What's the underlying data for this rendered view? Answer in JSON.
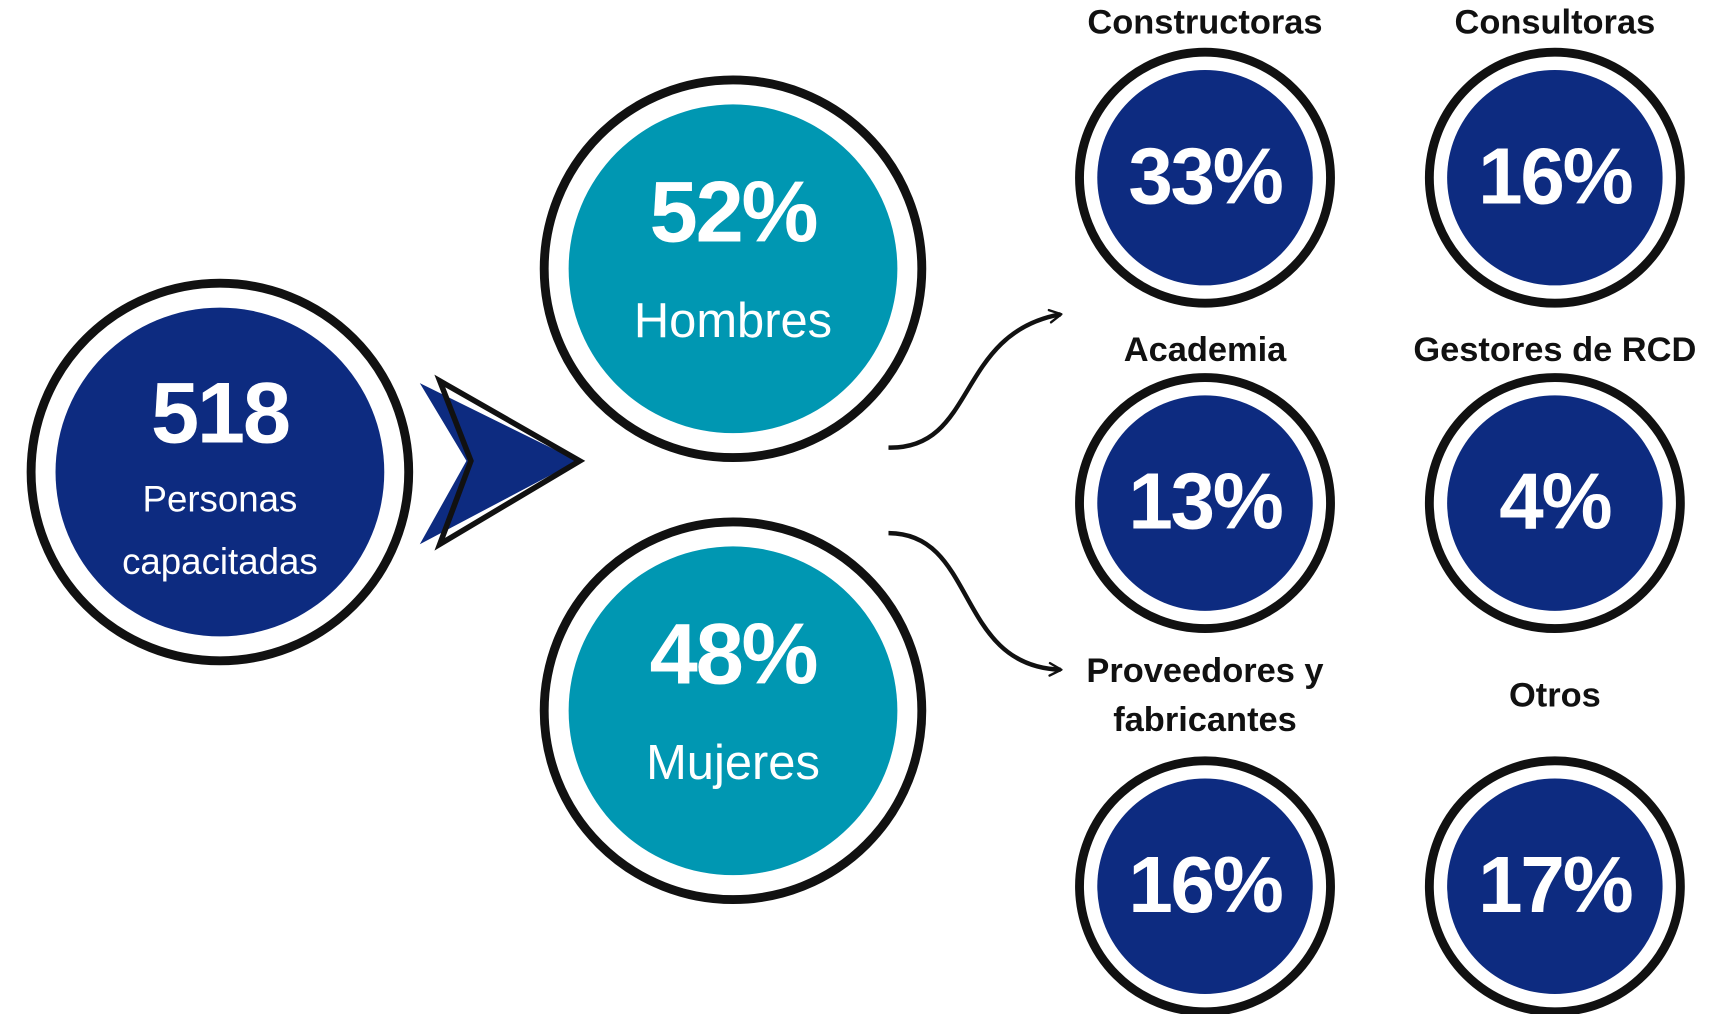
{
  "total": {
    "value": "518",
    "label": [
      "Personas",
      "capacitadas"
    ]
  },
  "gender": [
    {
      "value": "52%",
      "label": "Hombres"
    },
    {
      "value": "48%",
      "label": "Mujeres"
    }
  ],
  "sectors": [
    {
      "label": [
        "Constructoras"
      ],
      "value": "33%"
    },
    {
      "label": [
        "Consultoras"
      ],
      "value": "16%"
    },
    {
      "label": [
        "Academia"
      ],
      "value": "13%"
    },
    {
      "label": [
        "Gestores de RCD"
      ],
      "value": "4%"
    },
    {
      "label": [
        "Proveedores y",
        "fabricantes"
      ],
      "value": "16%"
    },
    {
      "label": [
        "Otros"
      ],
      "value": "17%"
    }
  ]
}
